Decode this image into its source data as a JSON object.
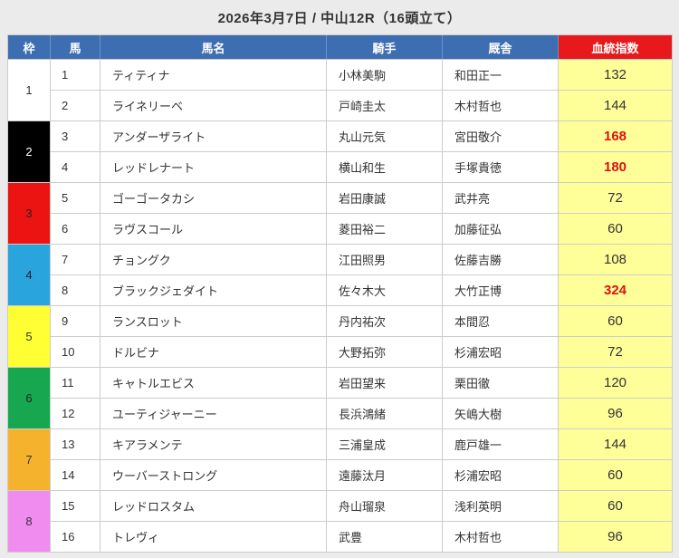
{
  "title": "2026年3月7日 / 中山12R（16頭立て）",
  "colors": {
    "page_bg": "#ebebeb",
    "header_bg": "#3d6eb1",
    "pedigree_header_bg": "#e8191c",
    "pedigree_cell_bg": "#ffff99",
    "highlight_value": "#dd1111"
  },
  "table": {
    "columns": [
      "枠",
      "馬",
      "馬名",
      "騎手",
      "厩舎",
      "血統指数"
    ],
    "frames": [
      {
        "no": 1,
        "color": "#ffffff",
        "text_color": "#333333"
      },
      {
        "no": 2,
        "color": "#000000",
        "text_color": "#ffffff"
      },
      {
        "no": 3,
        "color": "#ec1313",
        "text_color": "#222222"
      },
      {
        "no": 4,
        "color": "#29a4dc",
        "text_color": "#222222"
      },
      {
        "no": 5,
        "color": "#ffff33",
        "text_color": "#333333"
      },
      {
        "no": 6,
        "color": "#17a750",
        "text_color": "#222222"
      },
      {
        "no": 7,
        "color": "#f5b32d",
        "text_color": "#333333"
      },
      {
        "no": 8,
        "color": "#f08cf0",
        "text_color": "#333333"
      }
    ],
    "rows": [
      {
        "frame": 1,
        "num": 1,
        "name": "ティティナ",
        "jockey": "小林美駒",
        "stable": "和田正一",
        "index": 132,
        "hot": false
      },
      {
        "frame": 1,
        "num": 2,
        "name": "ライネリーベ",
        "jockey": "戸崎圭太",
        "stable": "木村哲也",
        "index": 144,
        "hot": false
      },
      {
        "frame": 2,
        "num": 3,
        "name": "アンダーザライト",
        "jockey": "丸山元気",
        "stable": "宮田敬介",
        "index": 168,
        "hot": true
      },
      {
        "frame": 2,
        "num": 4,
        "name": "レッドレナート",
        "jockey": "横山和生",
        "stable": "手塚貴徳",
        "index": 180,
        "hot": true
      },
      {
        "frame": 3,
        "num": 5,
        "name": "ゴーゴータカシ",
        "jockey": "岩田康誠",
        "stable": "武井亮",
        "index": 72,
        "hot": false
      },
      {
        "frame": 3,
        "num": 6,
        "name": "ラヴスコール",
        "jockey": "菱田裕二",
        "stable": "加藤征弘",
        "index": 60,
        "hot": false
      },
      {
        "frame": 4,
        "num": 7,
        "name": "チョングク",
        "jockey": "江田照男",
        "stable": "佐藤吉勝",
        "index": 108,
        "hot": false
      },
      {
        "frame": 4,
        "num": 8,
        "name": "ブラックジェダイト",
        "jockey": "佐々木大",
        "stable": "大竹正博",
        "index": 324,
        "hot": true
      },
      {
        "frame": 5,
        "num": 9,
        "name": "ランスロット",
        "jockey": "丹内祐次",
        "stable": "本間忍",
        "index": 60,
        "hot": false
      },
      {
        "frame": 5,
        "num": 10,
        "name": "ドルビナ",
        "jockey": "大野拓弥",
        "stable": "杉浦宏昭",
        "index": 72,
        "hot": false
      },
      {
        "frame": 6,
        "num": 11,
        "name": "キャトルエビス",
        "jockey": "岩田望来",
        "stable": "栗田徹",
        "index": 120,
        "hot": false
      },
      {
        "frame": 6,
        "num": 12,
        "name": "ユーティジャーニー",
        "jockey": "長浜鴻緒",
        "stable": "矢嶋大樹",
        "index": 96,
        "hot": false
      },
      {
        "frame": 7,
        "num": 13,
        "name": "キアラメンテ",
        "jockey": "三浦皇成",
        "stable": "鹿戸雄一",
        "index": 144,
        "hot": false
      },
      {
        "frame": 7,
        "num": 14,
        "name": "ウーバーストロング",
        "jockey": "遠藤汰月",
        "stable": "杉浦宏昭",
        "index": 60,
        "hot": false
      },
      {
        "frame": 8,
        "num": 15,
        "name": "レッドロスタム",
        "jockey": "舟山瑠泉",
        "stable": "浅利英明",
        "index": 60,
        "hot": false
      },
      {
        "frame": 8,
        "num": 16,
        "name": "トレヴィ",
        "jockey": "武豊",
        "stable": "木村哲也",
        "index": 96,
        "hot": false
      }
    ]
  }
}
